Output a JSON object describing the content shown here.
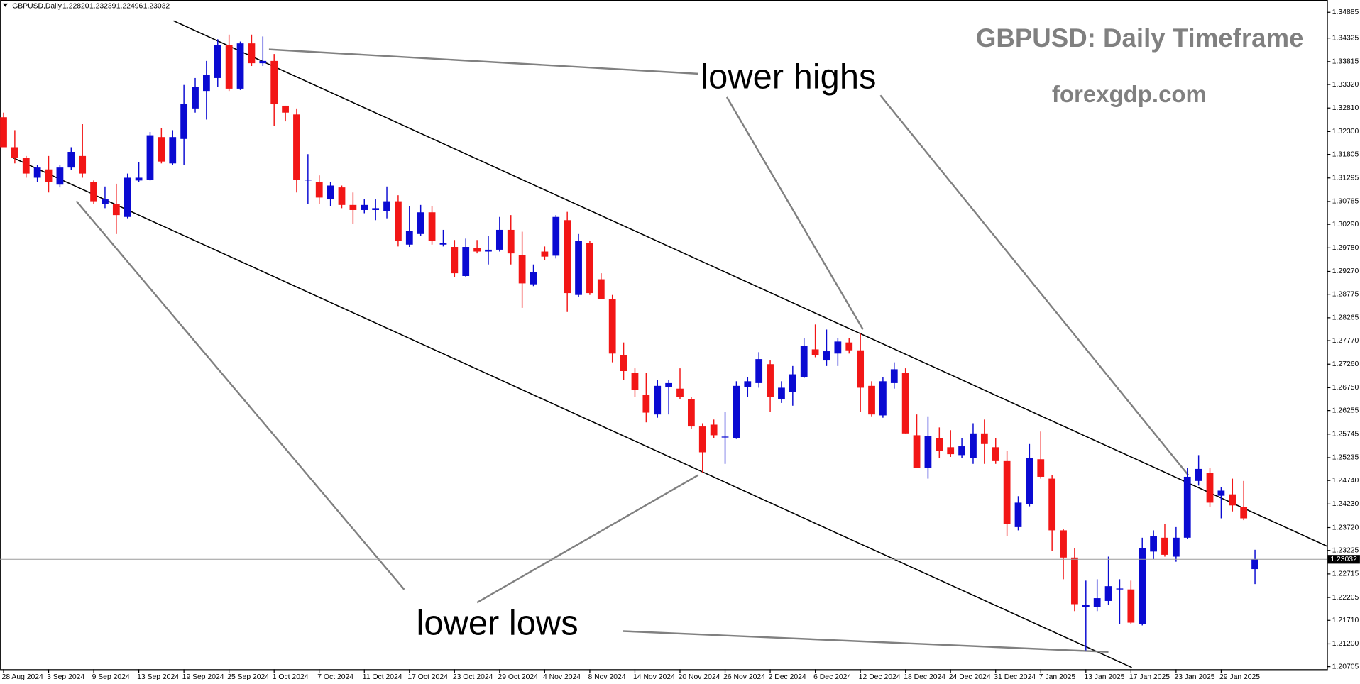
{
  "chart_data": {
    "type": "candlestick",
    "title": "GBPUSD: Daily Timeframe",
    "subtitle": "forexgdp.com",
    "symbol": "GBPUSD,Daily",
    "last_bar_labels": [
      "1.22820",
      "1.23239",
      "1.22496",
      "1.23032"
    ],
    "annotations": [
      "lower highs",
      "lower lows"
    ],
    "colors": {
      "up": "#0a0ad2",
      "down": "#f21616"
    },
    "categories": [
      "28 Aug 2024",
      null,
      null,
      null,
      "3 Sep 2024",
      null,
      null,
      null,
      "9 Sep 2024",
      null,
      null,
      null,
      "13 Sep 2024",
      null,
      null,
      null,
      "19 Sep 2024",
      null,
      null,
      null,
      "25 Sep 2024",
      null,
      null,
      null,
      "1 Oct 2024",
      null,
      null,
      null,
      "7 Oct 2024",
      null,
      null,
      null,
      "11 Oct 2024",
      null,
      null,
      null,
      "17 Oct 2024",
      null,
      null,
      null,
      "23 Oct 2024",
      null,
      null,
      null,
      "29 Oct 2024",
      null,
      null,
      null,
      "4 Nov 2024",
      null,
      null,
      null,
      "8 Nov 2024",
      null,
      null,
      null,
      "14 Nov 2024",
      null,
      null,
      null,
      "20 Nov 2024",
      null,
      null,
      null,
      "26 Nov 2024",
      null,
      null,
      null,
      "2 Dec 2024",
      null,
      null,
      null,
      "6 Dec 2024",
      null,
      null,
      null,
      "12 Dec 2024",
      null,
      null,
      null,
      "18 Dec 2024",
      null,
      null,
      null,
      "24 Dec 2024",
      null,
      null,
      null,
      "31 Dec 2024",
      null,
      null,
      null,
      "7 Jan 2025",
      null,
      null,
      null,
      "13 Jan 2025",
      null,
      null,
      null,
      "17 Jan 2025",
      null,
      null,
      null,
      "23 Jan 2025",
      null,
      null,
      null,
      "29 Jan 2025",
      null,
      null,
      null
    ],
    "open": [
      1.3261,
      1.3196,
      1.3173,
      1.313,
      1.3148,
      1.3115,
      1.3152,
      1.3177,
      1.312,
      1.3073,
      1.3073,
      1.3045,
      1.3124,
      1.3126,
      1.3218,
      1.3161,
      1.3214,
      1.328,
      1.3318,
      1.3346,
      1.3417,
      1.3323,
      1.3421,
      1.3378,
      1.3383,
      1.3286,
      1.3267,
      1.3124,
      1.312,
      1.3083,
      1.3109,
      1.3071,
      1.306,
      1.306,
      1.3058,
      1.3079,
      1.2985,
      1.3008,
      1.3055,
      1.2985,
      1.298,
      1.2917,
      1.2978,
      1.297,
      1.2974,
      1.3017,
      1.2963,
      1.2899,
      1.297,
      1.2961,
      1.3038,
      1.2876,
      1.2989,
      1.291,
      1.2867,
      1.2745,
      1.2707,
      1.266,
      1.2617,
      1.2677,
      1.2673,
      1.2651,
      1.2591,
      1.2595,
      1.2568,
      1.2566,
      1.2677,
      1.2685,
      1.2726,
      1.2651,
      1.2666,
      1.2698,
      1.2758,
      1.2734,
      1.2749,
      1.2773,
      1.2756,
      1.2679,
      1.2615,
      1.2685,
      1.2707,
      1.2572,
      1.2501,
      1.2566,
      1.2546,
      1.2529,
      1.2523,
      1.2576,
      1.2546,
      1.2516,
      1.2373,
      1.2422,
      1.252,
      1.2478,
      1.2366,
      1.2307,
      1.22,
      1.22,
      1.2213,
      1.2238,
      1.2238,
      1.2163,
      1.232,
      1.235,
      1.2309,
      1.235,
      1.2473,
      1.2491,
      1.2441,
      1.2444,
      1.2416,
      1.2282
    ],
    "high": [
      1.3271,
      1.3233,
      1.3177,
      1.3158,
      1.3177,
      1.3158,
      1.3196,
      1.3246,
      1.3124,
      1.3111,
      1.3117,
      1.3139,
      1.3164,
      1.3229,
      1.3237,
      1.3233,
      1.3331,
      1.3346,
      1.3383,
      1.343,
      1.344,
      1.3425,
      1.344,
      1.3436,
      1.3398,
      1.3286,
      1.328,
      1.3181,
      1.3135,
      1.312,
      1.3113,
      1.3098,
      1.3083,
      1.3083,
      1.3111,
      1.3092,
      1.3068,
      1.3071,
      1.3068,
      1.3017,
      1.2995,
      1.2998,
      1.2995,
      1.3004,
      1.3045,
      1.3049,
      1.3013,
      1.2942,
      1.2981,
      1.3049,
      1.3056,
      1.3008,
      1.2993,
      1.2923,
      1.2876,
      1.2773,
      1.2717,
      1.2707,
      1.2692,
      1.2692,
      1.2717,
      1.2655,
      1.2598,
      1.2606,
      1.2623,
      1.2689,
      1.2698,
      1.2752,
      1.2734,
      1.2689,
      1.2722,
      1.2782,
      1.2812,
      1.2801,
      1.2782,
      1.2782,
      1.2792,
      1.2689,
      1.2698,
      1.273,
      1.2717,
      1.2617,
      1.2613,
      1.2589,
      1.2583,
      1.2566,
      1.2598,
      1.2606,
      1.2566,
      1.2538,
      1.244,
      1.2553,
      1.258,
      1.2486,
      1.2369,
      1.2328,
      1.2257,
      1.226,
      1.2309,
      1.226,
      1.2257,
      1.235,
      1.2366,
      1.2379,
      1.2373,
      1.2501,
      1.2529,
      1.2501,
      1.246,
      1.2478,
      1.2473,
      1.23239
    ],
    "low": [
      1.3196,
      1.3161,
      1.313,
      1.312,
      1.3098,
      1.3109,
      1.3147,
      1.313,
      1.3073,
      1.3064,
      1.3008,
      1.3042,
      1.312,
      1.3124,
      1.3161,
      1.3158,
      1.3158,
      1.3271,
      1.3256,
      1.3327,
      1.3318,
      1.332,
      1.3372,
      1.3372,
      1.3242,
      1.3252,
      1.3098,
      1.3073,
      1.3073,
      1.3068,
      1.3064,
      1.303,
      1.3053,
      1.3038,
      1.3042,
      1.2981,
      1.298,
      1.3004,
      1.2985,
      1.2981,
      1.2914,
      1.2914,
      1.2966,
      1.2942,
      1.297,
      1.2942,
      1.2848,
      1.2895,
      1.2951,
      1.2955,
      1.2839,
      1.2872,
      1.2876,
      1.2867,
      1.273,
      1.2692,
      1.2655,
      1.26,
      1.261,
      1.2617,
      1.2651,
      1.2585,
      1.2491,
      1.2566,
      1.251,
      1.2564,
      1.2655,
      1.2675,
      1.2623,
      1.2642,
      1.2636,
      1.2696,
      1.2741,
      1.2722,
      1.2722,
      1.2749,
      1.2623,
      1.2613,
      1.261,
      1.2673,
      1.2576,
      1.2501,
      1.2478,
      1.2523,
      1.2525,
      1.2523,
      1.251,
      1.251,
      1.251,
      1.2354,
      1.2366,
      1.2418,
      1.2478,
      1.2322,
      1.226,
      1.2191,
      1.2106,
      1.2191,
      1.2204,
      1.2163,
      1.2163,
      1.216,
      1.2303,
      1.2309,
      1.2298,
      1.2347,
      1.2463,
      1.2416,
      1.2392,
      1.2407,
      1.2388,
      1.22496
    ],
    "close": [
      1.3196,
      1.3173,
      1.3139,
      1.3152,
      1.312,
      1.3152,
      1.3186,
      1.3139,
      1.3079,
      1.3083,
      1.3049,
      1.313,
      1.313,
      1.3222,
      1.3165,
      1.3218,
      1.3289,
      1.3327,
      1.3353,
      1.3417,
      1.3323,
      1.3421,
      1.3378,
      1.3383,
      1.3289,
      1.3271,
      1.3126,
      1.3126,
      1.3087,
      1.3113,
      1.3071,
      1.306,
      1.3071,
      1.3064,
      1.3079,
      1.2993,
      1.3015,
      1.3055,
      1.2993,
      1.2989,
      1.2923,
      1.298,
      1.297,
      1.2974,
      1.3017,
      1.2966,
      1.2901,
      1.2925,
      1.2959,
      1.3045,
      1.288,
      1.2993,
      1.288,
      1.2867,
      1.2749,
      1.2711,
      1.267,
      1.2621,
      1.2679,
      1.2685,
      1.2655,
      1.2591,
      1.2535,
      1.2572,
      1.2569,
      1.2679,
      1.2689,
      1.2737,
      1.2655,
      1.2675,
      1.2704,
      1.2765,
      1.2745,
      1.2754,
      1.2775,
      1.2756,
      1.2675,
      1.2617,
      1.2689,
      1.2715,
      1.2576,
      1.2501,
      1.257,
      1.2538,
      1.2531,
      1.2548,
      1.2576,
      1.2553,
      1.2516,
      1.238,
      1.2426,
      1.2523,
      1.2482,
      1.2366,
      1.2307,
      1.2206,
      1.2204,
      1.2219,
      1.2245,
      1.224,
      1.2166,
      1.2328,
      1.2354,
      1.2313,
      1.235,
      1.2482,
      1.2499,
      1.2426,
      1.2452,
      1.242,
      1.2392,
      1.23032
    ],
    "ylim": [
      1.2065,
      1.3515
    ],
    "yticks": [
      1.20705,
      {
        "value": 1.212,
        "label": "1.21200"
      },
      {
        "value": 1.2171,
        "label": "1.21710"
      },
      1.22205,
      1.22715,
      1.23225,
      {
        "value": 1.2372,
        "label": "1.23720"
      },
      {
        "value": 1.2423,
        "label": "1.24230"
      },
      {
        "value": 1.2474,
        "label": "1.24740"
      },
      1.25235,
      1.25745,
      1.26255,
      {
        "value": 1.2675,
        "label": "1.26750"
      },
      {
        "value": 1.2726,
        "label": "1.27260"
      },
      {
        "value": 1.2777,
        "label": "1.27770"
      },
      1.28265,
      1.28775,
      {
        "value": 1.2927,
        "label": "1.29270"
      },
      {
        "value": 1.2978,
        "label": "1.29780"
      },
      {
        "value": 1.3029,
        "label": "1.30290"
      },
      1.30785,
      1.31295,
      1.31805,
      {
        "value": 1.323,
        "label": "1.32300"
      },
      {
        "value": 1.3281,
        "label": "1.32810"
      },
      {
        "value": 1.3332,
        "label": "1.33320"
      },
      1.33815,
      1.34325,
      1.34885
    ]
  }
}
